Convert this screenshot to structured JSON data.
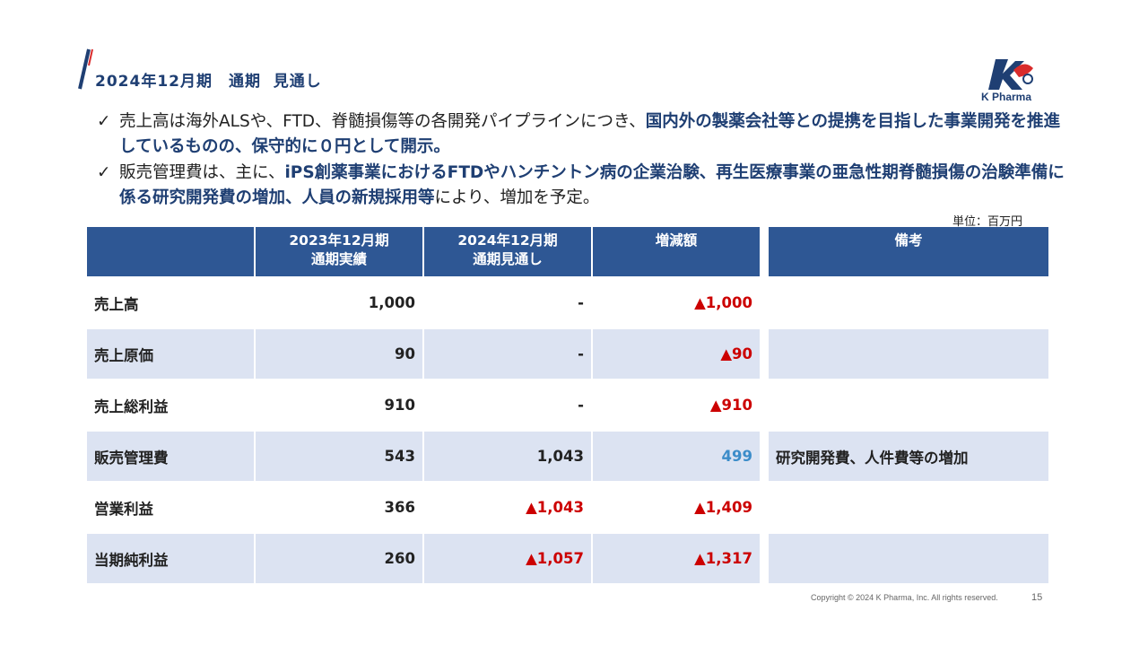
{
  "header": {
    "title": "2024年12月期　通期  見通し",
    "logo_text": "K Pharma"
  },
  "bullets": [
    {
      "check": "✓",
      "segments": [
        {
          "text": "売上高は海外ALSや、FTD、脊髄損傷等の各開発パイプラインにつき、",
          "bold": false
        },
        {
          "text": "国内外の製薬会社等との提携を目指した事業開発を推進しているものの、保守的に０円として開示。",
          "bold": true
        }
      ]
    },
    {
      "check": "✓",
      "segments": [
        {
          "text": "販売管理費は、主に、",
          "bold": false
        },
        {
          "text": "iPS創薬事業におけるFTDやハンチントン病の企業治験、再生医療事業の亜急性期脊髄損傷の治験準備に係る研究開発費の増加、人員の新規採用等",
          "bold": true
        },
        {
          "text": "により、増加を予定。",
          "bold": false
        }
      ]
    }
  ],
  "unit_label": "単位：百万円",
  "table": {
    "columns": [
      "",
      "2023年12月期\n通期実績",
      "2024年12月期\n通期見通し",
      "増減額",
      "備考"
    ],
    "rows": [
      {
        "label": "売上高",
        "actual_2023": "1,000",
        "forecast_2024": "-",
        "change": "▲1,000",
        "note": ""
      },
      {
        "label": "売上原価",
        "actual_2023": "90",
        "forecast_2024": "-",
        "change": "▲90",
        "note": ""
      },
      {
        "label": "売上総利益",
        "actual_2023": "910",
        "forecast_2024": "-",
        "change": "▲910",
        "note": ""
      },
      {
        "label": "販売管理費",
        "actual_2023": "543",
        "forecast_2024": "1,043",
        "change": "499",
        "note": "研究開発費、人件費等の増加"
      },
      {
        "label": "営業利益",
        "actual_2023": "366",
        "forecast_2024": "▲1,043",
        "change": "▲1,409",
        "note": ""
      },
      {
        "label": "当期純利益",
        "actual_2023": "260",
        "forecast_2024": "▲1,057",
        "change": "▲1,317",
        "note": ""
      }
    ]
  },
  "colors": {
    "header_fill": "#2e5794",
    "row_band": "#dce3f2",
    "negative": "#cc0000",
    "positive_change": "#3b8cc9",
    "title": "#1f3f73"
  },
  "footer": {
    "copyright": "Copyright © 2024 K Pharma, Inc. All rights reserved.",
    "page": "15"
  }
}
